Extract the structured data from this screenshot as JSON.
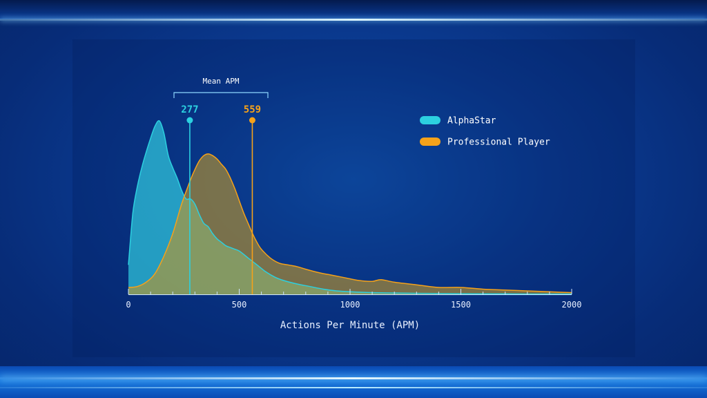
{
  "chart_data": {
    "type": "area",
    "xlabel": "Actions Per Minute (APM)",
    "xlim": [
      0,
      2000
    ],
    "x_ticks": [
      0,
      500,
      1000,
      1500,
      2000
    ],
    "x_tick_labels": [
      "0",
      "500",
      "1000",
      "1500",
      "2000"
    ],
    "ylim": [
      0,
      1
    ],
    "grid": false,
    "legend_position": "top-right",
    "mean_annotation": {
      "title": "Mean APM",
      "markers": [
        {
          "series": "AlphaStar",
          "value": 277,
          "label": "277"
        },
        {
          "series": "Professional Player",
          "value": 559,
          "label": "559"
        }
      ]
    },
    "series": [
      {
        "name": "AlphaStar",
        "color": "#2cd0e0",
        "x": [
          0,
          20,
          40,
          60,
          80,
          100,
          120,
          140,
          160,
          180,
          200,
          220,
          240,
          260,
          280,
          300,
          320,
          340,
          360,
          380,
          400,
          420,
          440,
          460,
          480,
          500,
          540,
          580,
          620,
          660,
          700,
          760,
          820,
          880,
          940,
          1000,
          1100,
          1200,
          1300,
          1400,
          1500,
          1600,
          1700,
          1800,
          1900,
          2000
        ],
        "y": [
          0.17,
          0.47,
          0.62,
          0.73,
          0.82,
          0.9,
          0.97,
          1.0,
          0.93,
          0.8,
          0.73,
          0.67,
          0.6,
          0.55,
          0.55,
          0.52,
          0.46,
          0.41,
          0.39,
          0.35,
          0.32,
          0.3,
          0.28,
          0.27,
          0.26,
          0.25,
          0.21,
          0.17,
          0.13,
          0.1,
          0.08,
          0.06,
          0.045,
          0.03,
          0.02,
          0.015,
          0.01,
          0.008,
          0.006,
          0.005,
          0.004,
          0.003,
          0.003,
          0.002,
          0.002,
          0.002
        ]
      },
      {
        "name": "Professional Player",
        "color": "#f5a21a",
        "x": [
          0,
          40,
          80,
          120,
          160,
          200,
          240,
          280,
          300,
          320,
          340,
          360,
          380,
          400,
          420,
          440,
          460,
          480,
          500,
          520,
          540,
          560,
          580,
          600,
          640,
          680,
          720,
          760,
          800,
          860,
          920,
          980,
          1040,
          1100,
          1140,
          1200,
          1300,
          1400,
          1500,
          1600,
          1700,
          1800,
          1900,
          2000
        ],
        "y": [
          0.04,
          0.045,
          0.07,
          0.12,
          0.22,
          0.35,
          0.52,
          0.66,
          0.72,
          0.77,
          0.8,
          0.81,
          0.8,
          0.78,
          0.75,
          0.72,
          0.67,
          0.61,
          0.54,
          0.47,
          0.41,
          0.35,
          0.3,
          0.26,
          0.21,
          0.18,
          0.17,
          0.16,
          0.145,
          0.125,
          0.11,
          0.095,
          0.08,
          0.075,
          0.085,
          0.07,
          0.055,
          0.04,
          0.04,
          0.03,
          0.025,
          0.02,
          0.015,
          0.01
        ]
      }
    ]
  }
}
